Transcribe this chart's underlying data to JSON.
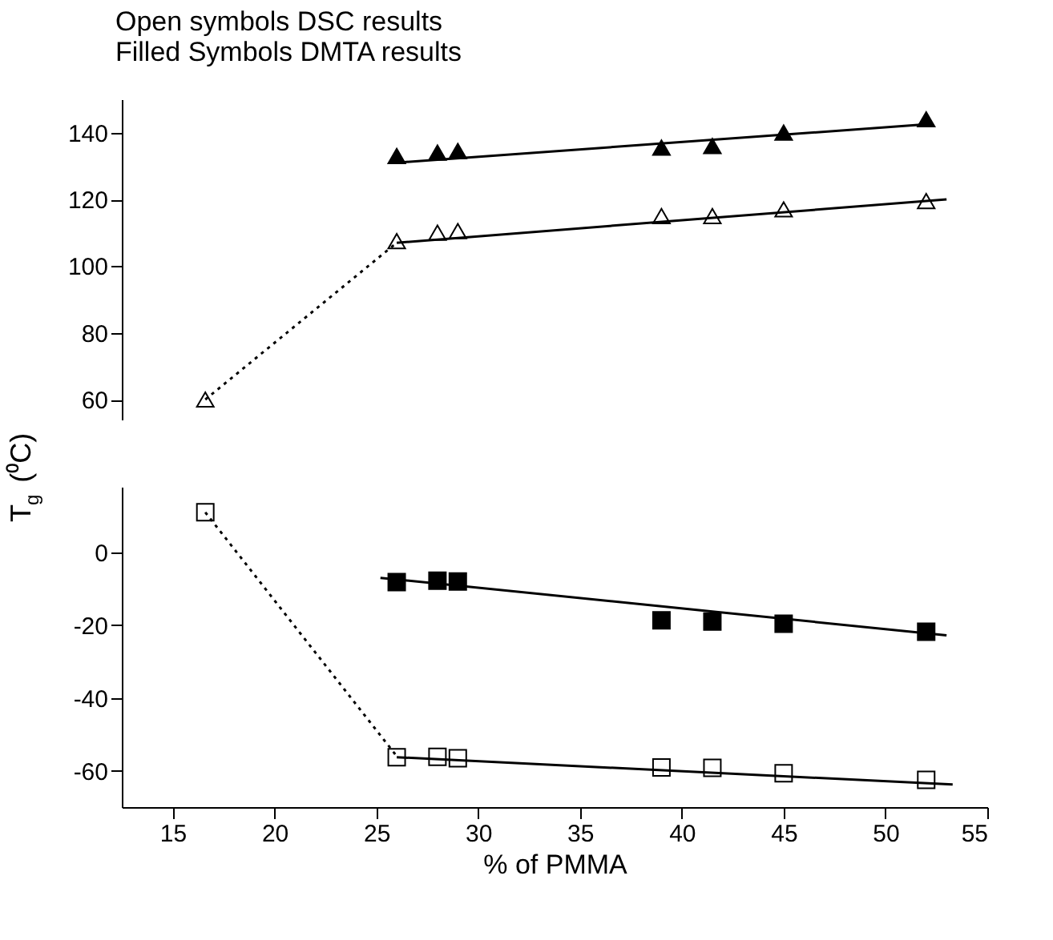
{
  "chart_data": [
    {
      "type": "scatter",
      "annotations": [
        "Open symbols DSC results",
        "Filled Symbols DMTA results"
      ],
      "xlim": [
        12.5,
        55
      ],
      "ylim": [
        54,
        150
      ],
      "yticks": [
        60,
        80,
        100,
        120,
        140
      ],
      "tick_labels": "y",
      "grid": false,
      "series": [
        {
          "marker": "triangle",
          "color": "#000000",
          "x": [
            26,
            28,
            29,
            39,
            41.5,
            45,
            52
          ],
          "values": [
            133,
            134,
            134.5,
            135.5,
            136,
            140,
            144
          ]
        },
        {
          "marker": "triangle",
          "color": "#ffffff",
          "x": [
            16.6,
            26,
            28,
            29,
            39,
            41.5,
            45,
            52
          ],
          "values": [
            60,
            107.5,
            110,
            110.5,
            115,
            115,
            117,
            119.5
          ]
        },
        {
          "type": "line",
          "line_style": "solid",
          "color": "#000000",
          "x": [
            26,
            52
          ],
          "values": [
            131,
            142.5
          ]
        },
        {
          "type": "line",
          "line_style": "solid",
          "color": "#000000",
          "x": [
            26,
            53
          ],
          "values": [
            107,
            120
          ]
        },
        {
          "type": "line",
          "line_style": "dotted",
          "color": "#000000",
          "x": [
            16.6,
            26
          ],
          "values": [
            60,
            107
          ]
        }
      ]
    },
    {
      "type": "scatter",
      "xlabel": "% of PMMA",
      "ylabel": "T$_{g}$ (⁰C)",
      "xlim": [
        12.5,
        55
      ],
      "xticks": [
        15,
        20,
        25,
        30,
        35,
        40,
        45,
        50,
        55
      ],
      "ylim": [
        -70,
        18
      ],
      "yticks": [
        -60,
        -40,
        -20,
        0
      ],
      "grid": false,
      "series": [
        {
          "marker": "square",
          "color": "#000000",
          "x": [
            26,
            28,
            29,
            39,
            41.5,
            45,
            52
          ],
          "values": [
            -8.2,
            -7.8,
            -8,
            -18.7,
            -19,
            -19.6,
            -21.8
          ]
        },
        {
          "marker": "square",
          "color": "#ffffff",
          "x": [
            16.6,
            26,
            28,
            29,
            39,
            41.5,
            45,
            52
          ],
          "values": [
            11,
            -56.3,
            -56.2,
            -56.6,
            -59.1,
            -59.2,
            -60.7,
            -62.5
          ]
        },
        {
          "type": "line",
          "line_style": "solid",
          "color": "#000000",
          "x": [
            25.2,
            53
          ],
          "values": [
            -7,
            -22.8
          ]
        },
        {
          "type": "line",
          "line_style": "solid",
          "color": "#000000",
          "x": [
            26,
            53.3
          ],
          "values": [
            -56.3,
            -63.8
          ]
        },
        {
          "type": "line",
          "line_style": "dotted",
          "color": "#000000",
          "x": [
            16.6,
            26
          ],
          "values": [
            11,
            -56
          ]
        }
      ]
    }
  ]
}
